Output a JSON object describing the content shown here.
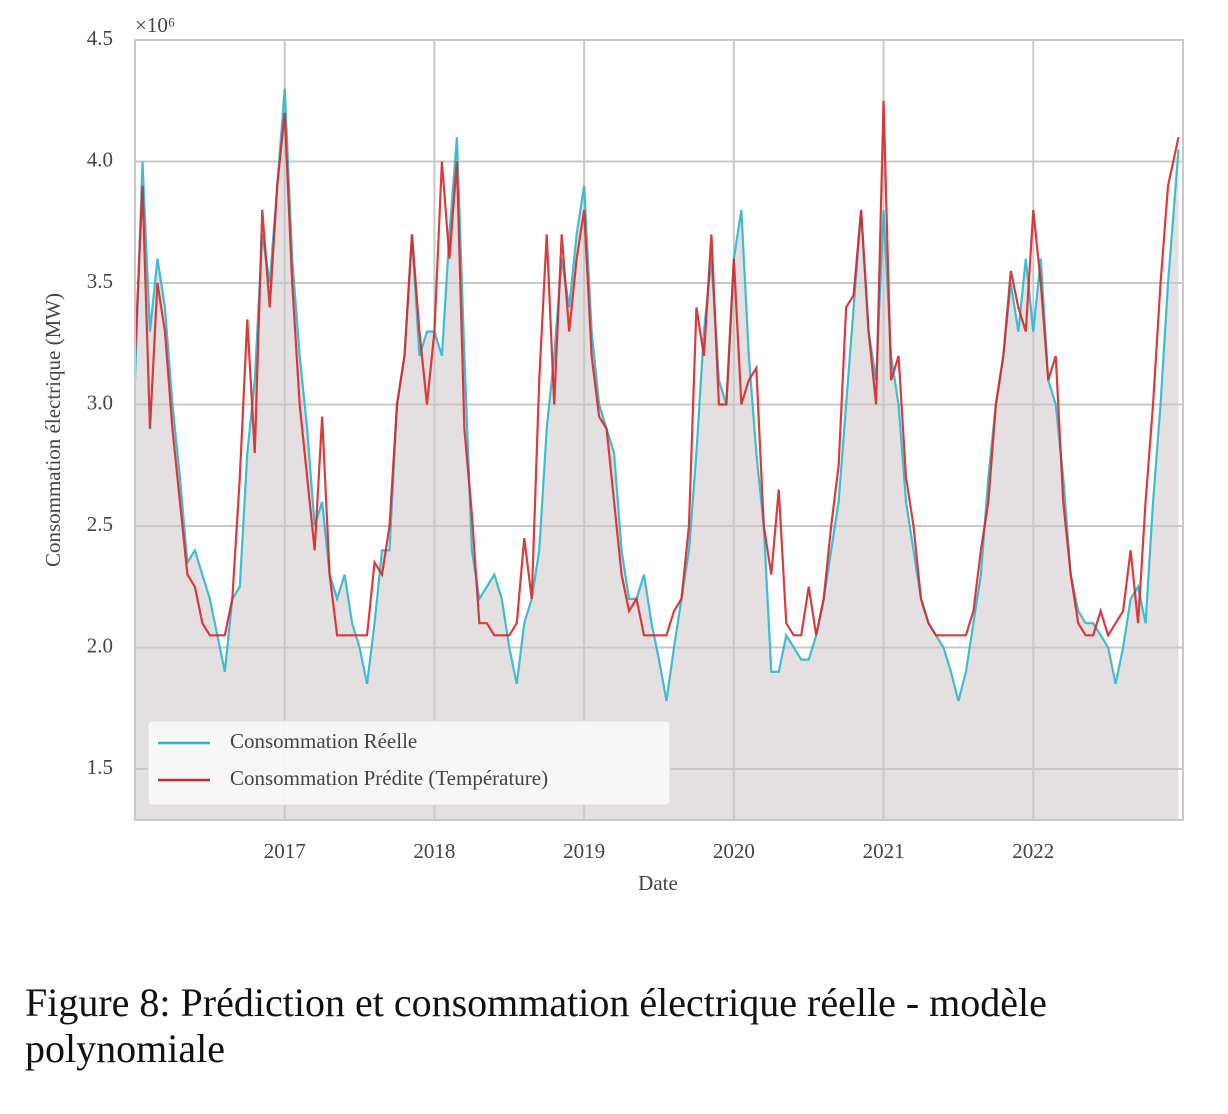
{
  "chart_data": {
    "type": "line",
    "x_label": "Date",
    "y_label": "Consommation électrique (MW)",
    "y_offset_label": "×10⁶",
    "caption": "Figure 8: Prédiction et consommation électrique réelle - modèle polynomiale",
    "x": [
      2016,
      2016.05,
      2016.1,
      2016.15,
      2016.2,
      2016.25,
      2016.3,
      2016.35,
      2016.4,
      2016.45,
      2016.5,
      2016.55,
      2016.6,
      2016.65,
      2016.7,
      2016.75,
      2016.8,
      2016.85,
      2016.9,
      2016.95,
      2017,
      2017.05,
      2017.1,
      2017.15,
      2017.2,
      2017.25,
      2017.3,
      2017.35,
      2017.4,
      2017.45,
      2017.5,
      2017.55,
      2017.6,
      2017.65,
      2017.7,
      2017.75,
      2017.8,
      2017.85,
      2017.9,
      2017.95,
      2018,
      2018.05,
      2018.1,
      2018.15,
      2018.2,
      2018.25,
      2018.3,
      2018.35,
      2018.4,
      2018.45,
      2018.5,
      2018.55,
      2018.6,
      2018.65,
      2018.7,
      2018.75,
      2018.8,
      2018.85,
      2018.9,
      2018.95,
      2019,
      2019.05,
      2019.1,
      2019.15,
      2019.2,
      2019.25,
      2019.3,
      2019.35,
      2019.4,
      2019.45,
      2019.5,
      2019.55,
      2019.6,
      2019.65,
      2019.7,
      2019.75,
      2019.8,
      2019.85,
      2019.9,
      2019.95,
      2020,
      2020.05,
      2020.1,
      2020.15,
      2020.2,
      2020.25,
      2020.3,
      2020.35,
      2020.4,
      2020.45,
      2020.5,
      2020.55,
      2020.6,
      2020.65,
      2020.7,
      2020.75,
      2020.8,
      2020.85,
      2020.9,
      2020.95,
      2021,
      2021.05,
      2021.1,
      2021.15,
      2021.2,
      2021.25,
      2021.3,
      2021.35,
      2021.4,
      2021.45,
      2021.5,
      2021.55,
      2021.6,
      2021.65,
      2021.7,
      2021.75,
      2021.8,
      2021.85,
      2021.9,
      2021.95,
      2022,
      2022.05,
      2022.1,
      2022.15,
      2022.2,
      2022.25,
      2022.3,
      2022.35,
      2022.4,
      2022.45,
      2022.5,
      2022.55,
      2022.6,
      2022.65,
      2022.7,
      2022.75,
      2022.8,
      2022.85,
      2022.9,
      2022.97
    ],
    "series": [
      {
        "name": "Consommation Réelle",
        "color": "#2bb6cf",
        "values": [
          3.1,
          4.0,
          3.3,
          3.6,
          3.4,
          3.0,
          2.7,
          2.35,
          2.4,
          2.3,
          2.2,
          2.05,
          1.9,
          2.2,
          2.25,
          2.8,
          3.1,
          3.7,
          3.5,
          3.9,
          4.3,
          3.6,
          3.2,
          2.9,
          2.5,
          2.6,
          2.3,
          2.2,
          2.3,
          2.1,
          2.0,
          1.85,
          2.1,
          2.4,
          2.4,
          3.0,
          3.2,
          3.7,
          3.2,
          3.3,
          3.3,
          3.2,
          3.7,
          4.1,
          3.2,
          2.4,
          2.2,
          2.25,
          2.3,
          2.2,
          2.0,
          1.85,
          2.1,
          2.2,
          2.4,
          2.9,
          3.2,
          3.6,
          3.4,
          3.7,
          3.9,
          3.3,
          3.0,
          2.9,
          2.8,
          2.4,
          2.2,
          2.2,
          2.3,
          2.1,
          1.95,
          1.78,
          2.0,
          2.2,
          2.4,
          2.8,
          3.3,
          3.6,
          3.1,
          3.0,
          3.6,
          3.8,
          3.2,
          2.8,
          2.5,
          1.9,
          1.9,
          2.05,
          2.0,
          1.95,
          1.95,
          2.05,
          2.2,
          2.4,
          2.6,
          3.0,
          3.4,
          3.8,
          3.3,
          3.1,
          3.8,
          3.2,
          3.0,
          2.6,
          2.4,
          2.2,
          2.1,
          2.05,
          2.0,
          1.9,
          1.78,
          1.9,
          2.1,
          2.3,
          2.7,
          3.0,
          3.2,
          3.5,
          3.3,
          3.6,
          3.3,
          3.6,
          3.1,
          3.0,
          2.7,
          2.3,
          2.15,
          2.1,
          2.1,
          2.05,
          2.0,
          1.85,
          2.0,
          2.2,
          2.25,
          2.1,
          2.6,
          3.0,
          3.5,
          4.05
        ]
      },
      {
        "name": "Consommation Prédite (Température)",
        "color": "#d62728",
        "values": [
          3.2,
          3.9,
          2.9,
          3.5,
          3.3,
          2.9,
          2.6,
          2.3,
          2.25,
          2.1,
          2.05,
          2.05,
          2.05,
          2.2,
          2.7,
          3.35,
          2.8,
          3.8,
          3.4,
          3.9,
          4.2,
          3.5,
          3.0,
          2.7,
          2.4,
          2.95,
          2.3,
          2.05,
          2.05,
          2.05,
          2.05,
          2.05,
          2.35,
          2.3,
          2.5,
          3.0,
          3.2,
          3.7,
          3.3,
          3.0,
          3.3,
          4.0,
          3.6,
          4.0,
          2.9,
          2.55,
          2.1,
          2.1,
          2.05,
          2.05,
          2.05,
          2.1,
          2.45,
          2.2,
          3.1,
          3.7,
          3.0,
          3.7,
          3.3,
          3.6,
          3.8,
          3.2,
          2.95,
          2.9,
          2.6,
          2.3,
          2.15,
          2.2,
          2.05,
          2.05,
          2.05,
          2.05,
          2.15,
          2.2,
          2.5,
          3.4,
          3.2,
          3.7,
          3.0,
          3.0,
          3.6,
          3.0,
          3.1,
          3.15,
          2.5,
          2.3,
          2.65,
          2.1,
          2.05,
          2.05,
          2.25,
          2.05,
          2.2,
          2.5,
          2.75,
          3.4,
          3.45,
          3.8,
          3.3,
          3.0,
          4.25,
          3.1,
          3.2,
          2.7,
          2.5,
          2.2,
          2.1,
          2.05,
          2.05,
          2.05,
          2.05,
          2.05,
          2.15,
          2.4,
          2.6,
          3.0,
          3.2,
          3.55,
          3.4,
          3.3,
          3.8,
          3.5,
          3.1,
          3.2,
          2.6,
          2.3,
          2.1,
          2.05,
          2.05,
          2.15,
          2.05,
          2.1,
          2.15,
          2.4,
          2.1,
          2.6,
          3.0,
          3.5,
          3.9,
          4.1
        ]
      }
    ],
    "xlim": [
      2016,
      2023
    ],
    "xticks": [
      2017,
      2018,
      2019,
      2020,
      2021,
      2022
    ],
    "ylim": [
      1.29,
      4.5
    ],
    "yticks": [
      1.5,
      {
        "value": 2,
        "label": "2.0"
      },
      2.5,
      {
        "value": 3,
        "label": "3.0"
      },
      3.5,
      {
        "value": 4,
        "label": "4.0"
      },
      4.5
    ],
    "grid": true,
    "fill_under_first_series": true,
    "legend": "lower left"
  }
}
